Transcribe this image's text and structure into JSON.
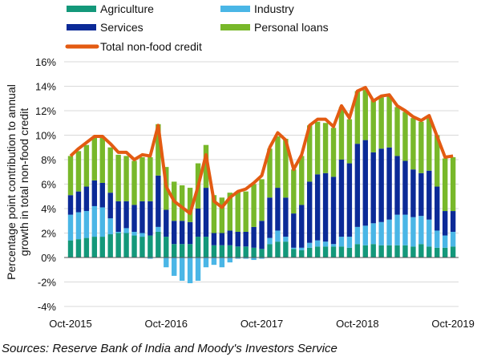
{
  "chart_data": {
    "type": "bar",
    "stacked": true,
    "title": "",
    "ylabel": "Percentage point contribution to annual growth in total non-food credit",
    "ylabel_lines": [
      "Percentage point contribution to annual",
      "growth in total non-food credit"
    ],
    "ylim": [
      -4,
      16
    ],
    "yticks": [
      "-4%",
      "-2%",
      "0%",
      "2%",
      "4%",
      "6%",
      "8%",
      "10%",
      "12%",
      "14%",
      "16%"
    ],
    "ytick_values": [
      -4,
      -2,
      0,
      2,
      4,
      6,
      8,
      10,
      12,
      14,
      16
    ],
    "xtick_labels": [
      "Oct-2015",
      "Oct-2016",
      "Oct-2017",
      "Oct-2018",
      "Oct-2019"
    ],
    "grid": "horizontal",
    "legend_placement": "top",
    "categories": [
      "Oct-2015",
      "Nov-2015",
      "Dec-2015",
      "Jan-2016",
      "Feb-2016",
      "Mar-2016",
      "Apr-2016",
      "May-2016",
      "Jun-2016",
      "Jul-2016",
      "Aug-2016",
      "Sep-2016",
      "Oct-2016",
      "Nov-2016",
      "Dec-2016",
      "Jan-2017",
      "Feb-2017",
      "Mar-2017",
      "Apr-2017",
      "May-2017",
      "Jun-2017",
      "Jul-2017",
      "Aug-2017",
      "Sep-2017",
      "Oct-2017",
      "Nov-2017",
      "Dec-2017",
      "Jan-2018",
      "Feb-2018",
      "Mar-2018",
      "Apr-2018",
      "May-2018",
      "Jun-2018",
      "Jul-2018",
      "Aug-2018",
      "Sep-2018",
      "Oct-2018",
      "Nov-2018",
      "Dec-2018",
      "Jan-2019",
      "Feb-2019",
      "Mar-2019",
      "Apr-2019",
      "May-2019",
      "Jun-2019",
      "Jul-2019",
      "Aug-2019",
      "Sep-2019",
      "Oct-2019"
    ],
    "series": [
      {
        "name": "Agriculture",
        "kind": "bar",
        "color": "#13987a",
        "values": [
          1.4,
          1.5,
          1.6,
          1.7,
          1.7,
          1.9,
          2.0,
          2.0,
          1.8,
          1.7,
          1.8,
          2.1,
          1.7,
          1.1,
          1.1,
          1.1,
          1.7,
          1.7,
          1.0,
          1.0,
          1.0,
          0.9,
          0.9,
          0.8,
          0.7,
          1.1,
          1.3,
          1.3,
          0.7,
          0.6,
          0.8,
          0.9,
          0.9,
          0.9,
          0.9,
          0.8,
          1.1,
          1.0,
          1.1,
          1.0,
          1.0,
          1.0,
          1.0,
          0.9,
          1.1,
          0.9,
          0.8,
          0.8,
          0.9
        ]
      },
      {
        "name": "Industry",
        "kind": "bar",
        "color": "#4ab6e6",
        "values": [
          2.1,
          2.2,
          2.2,
          2.5,
          2.4,
          1.3,
          0.1,
          0.4,
          0.3,
          0.3,
          -0.1,
          0.4,
          -0.8,
          -1.5,
          -1.9,
          -2.1,
          -1.9,
          -0.8,
          -0.6,
          -0.8,
          -0.4,
          -0.1,
          -0.1,
          -0.2,
          -0.1,
          0.5,
          0.9,
          0.4,
          0.1,
          0.2,
          0.4,
          0.5,
          0.4,
          0.2,
          0.8,
          0.9,
          1.4,
          1.6,
          1.7,
          1.9,
          2.1,
          2.5,
          2.5,
          2.4,
          2.3,
          2.2,
          1.4,
          1.0,
          1.2
        ]
      },
      {
        "name": "Services",
        "kind": "bar",
        "color": "#0b2a97",
        "values": [
          1.6,
          1.7,
          2.0,
          2.1,
          2.0,
          2.1,
          2.5,
          2.2,
          2.2,
          2.6,
          2.8,
          4.2,
          2.2,
          1.9,
          1.9,
          1.8,
          2.3,
          4.0,
          1.0,
          1.0,
          1.2,
          1.2,
          1.2,
          1.7,
          2.3,
          3.3,
          3.5,
          3.2,
          2.8,
          3.5,
          5.0,
          5.4,
          5.6,
          5.5,
          6.3,
          6.0,
          6.8,
          7.0,
          5.8,
          6.0,
          5.9,
          4.8,
          4.4,
          3.9,
          3.5,
          4.0,
          3.6,
          2.0,
          1.7
        ]
      },
      {
        "name": "Personal loans",
        "kind": "bar",
        "color": "#78b82a",
        "values": [
          3.2,
          3.3,
          3.4,
          3.5,
          3.8,
          3.7,
          3.8,
          3.7,
          3.6,
          3.6,
          3.6,
          4.2,
          3.5,
          3.2,
          2.9,
          2.8,
          3.7,
          3.5,
          3.1,
          2.9,
          3.1,
          3.3,
          3.3,
          3.5,
          3.4,
          4.0,
          4.2,
          4.8,
          3.6,
          4.0,
          4.6,
          4.3,
          4.1,
          4.0,
          4.3,
          3.6,
          4.3,
          4.1,
          4.3,
          4.2,
          4.2,
          4.0,
          4.0,
          4.2,
          4.2,
          4.3,
          4.2,
          4.3,
          4.4
        ]
      },
      {
        "name": "Total non-food credit",
        "kind": "line",
        "color": "#e35b12",
        "values": [
          8.3,
          8.9,
          9.4,
          9.9,
          9.9,
          9.3,
          8.6,
          8.6,
          8.0,
          8.4,
          8.3,
          10.8,
          5.8,
          4.6,
          4.1,
          3.6,
          5.8,
          8.4,
          4.6,
          4.1,
          4.9,
          5.4,
          5.6,
          6.1,
          6.7,
          9.0,
          10.2,
          9.6,
          7.2,
          8.4,
          10.8,
          11.3,
          11.3,
          10.7,
          12.4,
          11.4,
          13.6,
          13.9,
          12.8,
          13.2,
          13.3,
          12.4,
          12.0,
          11.5,
          11.2,
          11.6,
          9.9,
          8.2,
          8.3
        ]
      }
    ]
  },
  "source": "Sources: Reserve Bank of India and Moody's Investors Service"
}
